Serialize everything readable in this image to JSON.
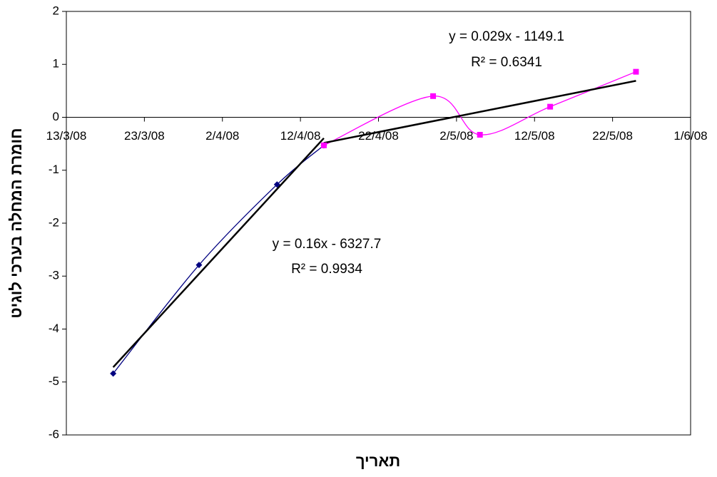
{
  "chart_data": {
    "type": "line",
    "x_label": "תאריך",
    "y_label": "חומרת המחלה בערכי לוגיט",
    "xlim": [
      "2008-03-13",
      "2008-06-01"
    ],
    "xticks": [
      {
        "value": "2008-03-13",
        "label": "13/3/08"
      },
      {
        "value": "2008-03-23",
        "label": "23/3/08"
      },
      {
        "value": "2008-04-02",
        "label": "2/4/08"
      },
      {
        "value": "2008-04-12",
        "label": "12/4/08"
      },
      {
        "value": "2008-04-22",
        "label": "22/4/08"
      },
      {
        "value": "2008-05-02",
        "label": "2/5/08"
      },
      {
        "value": "2008-05-12",
        "label": "12/5/08"
      },
      {
        "value": "2008-05-22",
        "label": "22/5/08"
      },
      {
        "value": "2008-06-01",
        "label": "1/6/08"
      }
    ],
    "ylim": [
      -6,
      2
    ],
    "yticks": [
      -6,
      -5,
      -4,
      -3,
      -2,
      -1,
      0,
      1,
      2
    ],
    "smooth": true,
    "trendline": "linear",
    "trendline_color": "#000000",
    "series": [
      {
        "color": "#000080",
        "marker": "diamond",
        "x": [
          "2008-03-19",
          "2008-03-30",
          "2008-04-09",
          "2008-04-15"
        ],
        "values": [
          -4.84,
          -2.79,
          -1.27,
          -0.53
        ]
      },
      {
        "color": "#ff00ff",
        "marker": "square",
        "x": [
          "2008-04-15",
          "2008-04-29",
          "2008-05-05",
          "2008-05-14",
          "2008-05-25"
        ],
        "values": [
          -0.53,
          0.4,
          -0.33,
          0.2,
          0.86
        ]
      }
    ],
    "annotations": [
      {
        "text": "y = 0.16x - 6327.7"
      },
      {
        "text": "R² = 0.9934"
      },
      {
        "text": "y = 0.029x - 1149.1"
      },
      {
        "text": "R² = 0.6341"
      }
    ]
  }
}
